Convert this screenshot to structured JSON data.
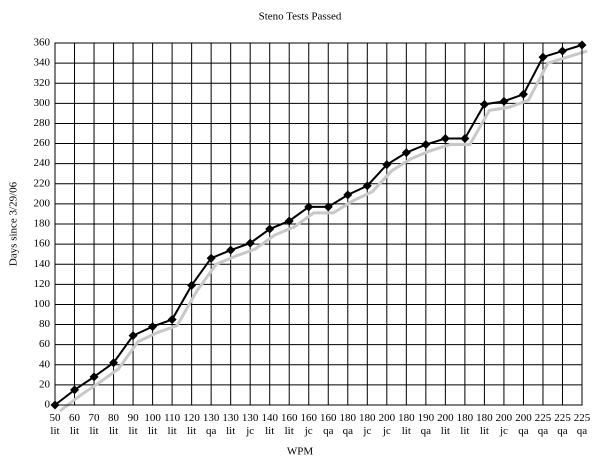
{
  "chart_data": {
    "type": "line",
    "title": "Steno Tests Passed",
    "x_label": "WPM",
    "y_label": "Days since 3/29/06",
    "categories": [
      [
        "50",
        "lit"
      ],
      [
        "60",
        "lit"
      ],
      [
        "70",
        "lit"
      ],
      [
        "80",
        "lit"
      ],
      [
        "90",
        "lit"
      ],
      [
        "100",
        "lit"
      ],
      [
        "110",
        "lit"
      ],
      [
        "120",
        "lit"
      ],
      [
        "130",
        "qa"
      ],
      [
        "130",
        "lit"
      ],
      [
        "130",
        "jc"
      ],
      [
        "140",
        "lit"
      ],
      [
        "160",
        "lit"
      ],
      [
        "160",
        "jc"
      ],
      [
        "160",
        "qa"
      ],
      [
        "180",
        "qa"
      ],
      [
        "180",
        "jc"
      ],
      [
        "200",
        "jc"
      ],
      [
        "180",
        "lit"
      ],
      [
        "190",
        "qa"
      ],
      [
        "200",
        "lit"
      ],
      [
        "180",
        "lit"
      ],
      [
        "180",
        "lit"
      ],
      [
        "200",
        "jc"
      ],
      [
        "200",
        "qa"
      ],
      [
        "225",
        "qa"
      ],
      [
        "225",
        "qa"
      ],
      [
        "225",
        "qa"
      ]
    ],
    "values": [
      0,
      15,
      28,
      42,
      69,
      78,
      85,
      119,
      146,
      154,
      161,
      175,
      183,
      197,
      197,
      209,
      218,
      239,
      251,
      259,
      265,
      265,
      299,
      302,
      309,
      346,
      352,
      358
    ],
    "color": "#000000",
    "shadow_color": "#c8c8c8",
    "ylim": [
      0,
      360
    ],
    "yticks": [
      0,
      20,
      40,
      60,
      80,
      100,
      120,
      140,
      160,
      180,
      200,
      220,
      240,
      260,
      280,
      300,
      320,
      340,
      360
    ],
    "grid": true
  }
}
